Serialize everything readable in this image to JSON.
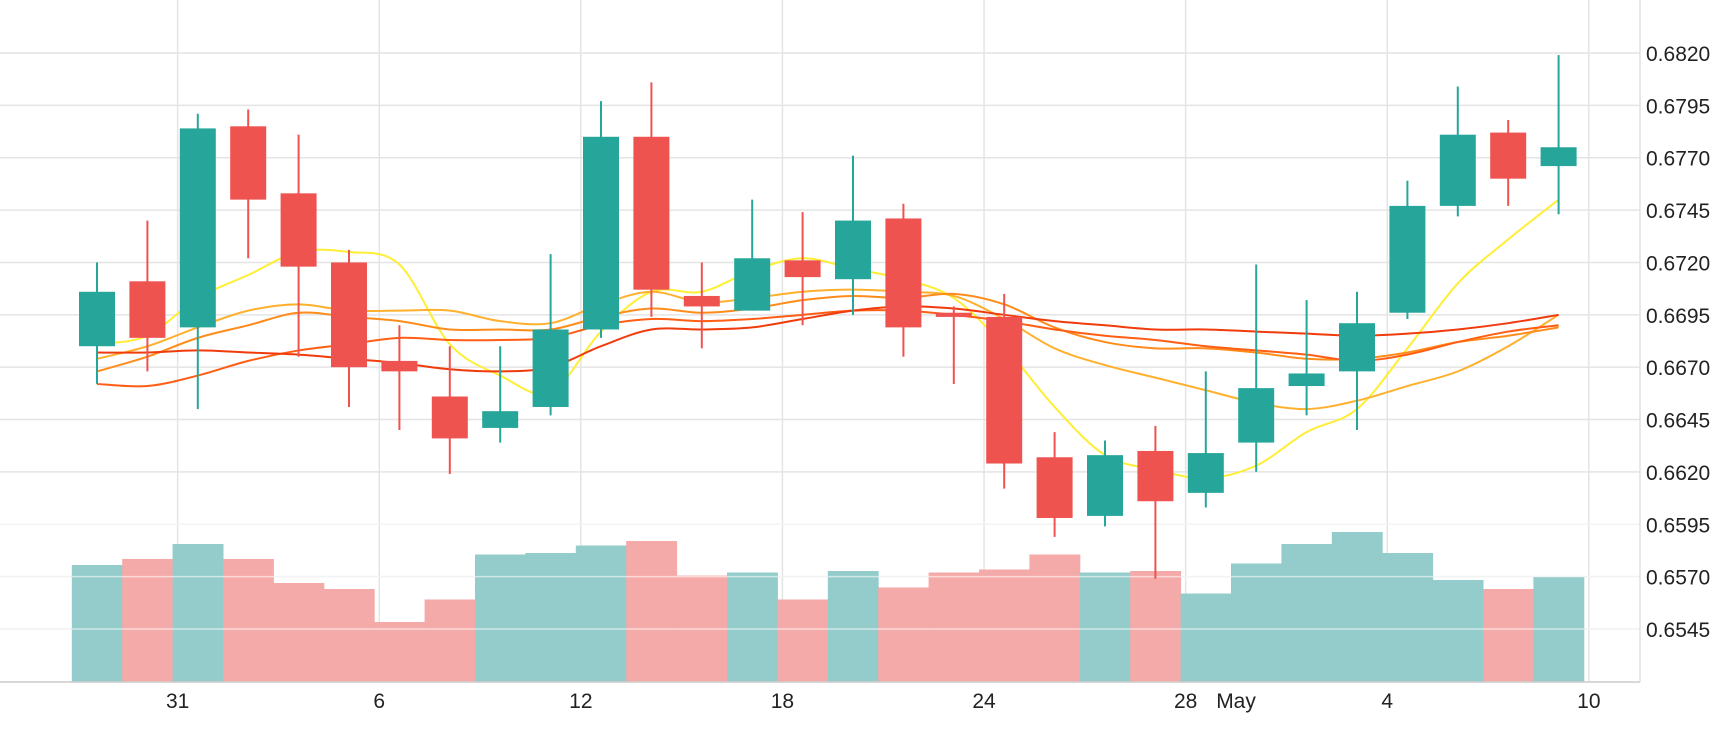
{
  "chart_data": {
    "type": "candlestick",
    "colors": {
      "up": "#26a69a",
      "down": "#ef5350",
      "volume_up": "#93ccca",
      "volume_down": "#f4aaa8",
      "grid": "#e4e4e4",
      "ma_lines": [
        "#ffee33",
        "#ffb02e",
        "#ff8c1a",
        "#ff5e14",
        "#f03b0c"
      ]
    },
    "y_axis": {
      "position": "right",
      "ticks": [
        "0.6820",
        "0.6795",
        "0.6770",
        "0.6745",
        "0.6720",
        "0.6695",
        "0.6670",
        "0.6645",
        "0.6620",
        "0.6595",
        "0.6570",
        "0.6545"
      ],
      "range": [
        0.6528,
        0.6832
      ]
    },
    "x_axis": {
      "ticks": [
        {
          "label": "31",
          "index": 1.6
        },
        {
          "label": "6",
          "index": 5.6
        },
        {
          "label": "12",
          "index": 9.6
        },
        {
          "label": "18",
          "index": 13.6
        },
        {
          "label": "24",
          "index": 17.6
        },
        {
          "label": "28",
          "index": 21.6
        },
        {
          "label": "May",
          "index": 22.6
        },
        {
          "label": "4",
          "index": 25.6
        },
        {
          "label": "10",
          "index": 29.6
        }
      ]
    },
    "candles": [
      {
        "o": 0.668,
        "h": 0.672,
        "l": 0.6662,
        "c": 0.6706
      },
      {
        "o": 0.6711,
        "h": 0.674,
        "l": 0.6668,
        "c": 0.6684
      },
      {
        "o": 0.6689,
        "h": 0.6791,
        "l": 0.665,
        "c": 0.6784
      },
      {
        "o": 0.6785,
        "h": 0.6793,
        "l": 0.6722,
        "c": 0.675
      },
      {
        "o": 0.6753,
        "h": 0.6781,
        "l": 0.6675,
        "c": 0.6718
      },
      {
        "o": 0.672,
        "h": 0.6726,
        "l": 0.6651,
        "c": 0.667
      },
      {
        "o": 0.6673,
        "h": 0.669,
        "l": 0.664,
        "c": 0.6668
      },
      {
        "o": 0.6656,
        "h": 0.668,
        "l": 0.6619,
        "c": 0.6636
      },
      {
        "o": 0.6641,
        "h": 0.668,
        "l": 0.6634,
        "c": 0.6649
      },
      {
        "o": 0.6651,
        "h": 0.6724,
        "l": 0.6647,
        "c": 0.6688
      },
      {
        "o": 0.6688,
        "h": 0.6797,
        "l": 0.6684,
        "c": 0.678
      },
      {
        "o": 0.678,
        "h": 0.6806,
        "l": 0.6694,
        "c": 0.6707
      },
      {
        "o": 0.6704,
        "h": 0.672,
        "l": 0.6679,
        "c": 0.6699
      },
      {
        "o": 0.6697,
        "h": 0.675,
        "l": 0.6697,
        "c": 0.6722
      },
      {
        "o": 0.6721,
        "h": 0.6744,
        "l": 0.669,
        "c": 0.6713
      },
      {
        "o": 0.6712,
        "h": 0.6771,
        "l": 0.6695,
        "c": 0.674
      },
      {
        "o": 0.6741,
        "h": 0.6748,
        "l": 0.6675,
        "c": 0.6689
      },
      {
        "o": 0.6696,
        "h": 0.6699,
        "l": 0.6662,
        "c": 0.6694
      },
      {
        "o": 0.6694,
        "h": 0.6705,
        "l": 0.6612,
        "c": 0.6624
      },
      {
        "o": 0.6627,
        "h": 0.6639,
        "l": 0.6589,
        "c": 0.6598
      },
      {
        "o": 0.6599,
        "h": 0.6635,
        "l": 0.6594,
        "c": 0.6628
      },
      {
        "o": 0.663,
        "h": 0.6642,
        "l": 0.6569,
        "c": 0.6606
      },
      {
        "o": 0.661,
        "h": 0.6668,
        "l": 0.6603,
        "c": 0.6629
      },
      {
        "o": 0.6634,
        "h": 0.6719,
        "l": 0.662,
        "c": 0.666
      },
      {
        "o": 0.6661,
        "h": 0.6702,
        "l": 0.6647,
        "c": 0.6667
      },
      {
        "o": 0.6668,
        "h": 0.6706,
        "l": 0.664,
        "c": 0.6691
      },
      {
        "o": 0.6696,
        "h": 0.6759,
        "l": 0.6693,
        "c": 0.6747
      },
      {
        "o": 0.6747,
        "h": 0.6804,
        "l": 0.6742,
        "c": 0.6781
      },
      {
        "o": 0.6782,
        "h": 0.6788,
        "l": 0.6747,
        "c": 0.676
      },
      {
        "o": 0.6766,
        "h": 0.6819,
        "l": 0.6743,
        "c": 0.6775
      }
    ],
    "volumes": [
      0.78,
      0.82,
      0.92,
      0.82,
      0.66,
      0.62,
      0.4,
      0.55,
      0.85,
      0.86,
      0.91,
      0.94,
      0.71,
      0.73,
      0.55,
      0.74,
      0.63,
      0.73,
      0.75,
      0.85,
      0.73,
      0.74,
      0.59,
      0.79,
      0.92,
      1.0,
      0.86,
      0.68,
      0.62,
      0.7
    ],
    "moving_averages": [
      {
        "values": [
          0.6681,
          0.6685,
          0.6703,
          0.6714,
          0.6725,
          0.6725,
          0.6719,
          0.6681,
          0.6666,
          0.6658,
          0.6687,
          0.6706,
          0.6706,
          0.6716,
          0.6722,
          0.6717,
          0.6712,
          0.6703,
          0.668,
          0.6651,
          0.6628,
          0.6621,
          0.6617,
          0.6623,
          0.6639,
          0.665,
          0.6679,
          0.671,
          0.6731,
          0.675
        ]
      },
      {
        "values": [
          0.6674,
          0.668,
          0.6689,
          0.6697,
          0.67,
          0.6697,
          0.6697,
          0.6697,
          0.6692,
          0.6691,
          0.67,
          0.6706,
          0.6701,
          0.6703,
          0.6706,
          0.6707,
          0.6706,
          0.6704,
          0.6693,
          0.6679,
          0.6671,
          0.6665,
          0.6659,
          0.6653,
          0.665,
          0.6654,
          0.6661,
          0.6668,
          0.668,
          0.6695
        ]
      },
      {
        "values": [
          0.6668,
          0.6675,
          0.6684,
          0.669,
          0.6696,
          0.6694,
          0.6692,
          0.6688,
          0.6688,
          0.6688,
          0.6694,
          0.6698,
          0.6696,
          0.6698,
          0.6702,
          0.6704,
          0.6703,
          0.6705,
          0.67,
          0.6689,
          0.6682,
          0.6679,
          0.6679,
          0.6677,
          0.6674,
          0.6674,
          0.6677,
          0.6682,
          0.6685,
          0.6689
        ]
      },
      {
        "values": [
          0.6662,
          0.6661,
          0.6666,
          0.6673,
          0.6678,
          0.6681,
          0.6684,
          0.6683,
          0.6683,
          0.6684,
          0.669,
          0.6693,
          0.6692,
          0.6693,
          0.6695,
          0.6697,
          0.6697,
          0.6695,
          0.6692,
          0.6688,
          0.6685,
          0.6683,
          0.668,
          0.6678,
          0.6676,
          0.6673,
          0.6676,
          0.6682,
          0.6687,
          0.669
        ]
      },
      {
        "values": [
          0.6677,
          0.6677,
          0.6678,
          0.6677,
          0.6676,
          0.6674,
          0.6672,
          0.6669,
          0.6668,
          0.667,
          0.668,
          0.6688,
          0.6688,
          0.6689,
          0.6693,
          0.6697,
          0.6699,
          0.6698,
          0.6695,
          0.6692,
          0.669,
          0.6688,
          0.6688,
          0.6687,
          0.6686,
          0.6685,
          0.6686,
          0.6688,
          0.6691,
          0.6695
        ]
      }
    ]
  }
}
